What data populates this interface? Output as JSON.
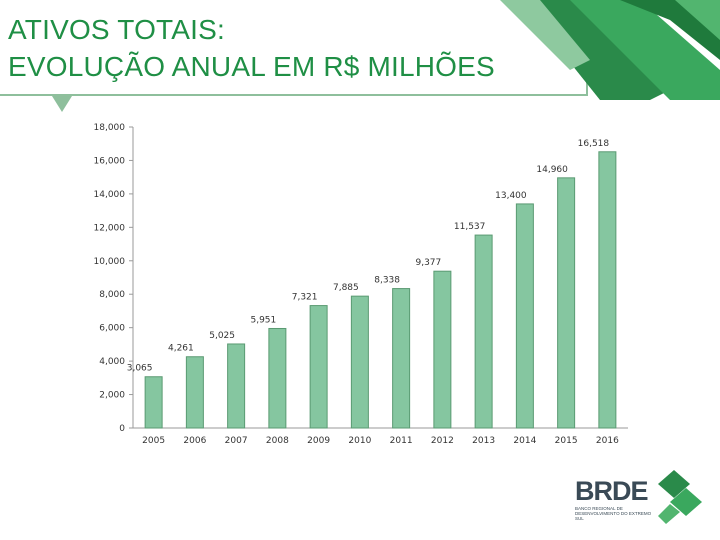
{
  "title": {
    "line1": "ATIVOS TOTAIS:",
    "line2": "EVOLUÇÃO ANUAL EM R$ MILHÕES"
  },
  "colors": {
    "bar_fill": "#85c6a0",
    "bar_stroke": "#5a9a72",
    "title_text": "#1f8f45",
    "accent_green": "#3aa85e",
    "dark_green": "#2a8a4a"
  },
  "logo": {
    "name": "BRDE",
    "subtitle": "BANCO REGIONAL DE DESENVOLVIMENTO DO EXTREMO SUL"
  },
  "chart_data": {
    "type": "bar",
    "title": "ATIVOS TOTAIS: EVOLUÇÃO ANUAL EM R$ MILHÕES",
    "categories": [
      "2005",
      "2006",
      "2007",
      "2008",
      "2009",
      "2010",
      "2011",
      "2012",
      "2013",
      "2014",
      "2015",
      "2016"
    ],
    "values": [
      3065,
      4261,
      5025,
      5951,
      7321,
      7885,
      8338,
      9377,
      11537,
      13400,
      14960,
      16518
    ],
    "value_labels": [
      "3,065",
      "4,261",
      "5,025",
      "5,951",
      "7,321",
      "7,885",
      "8,338",
      "9,377",
      "11,537",
      "13,400",
      "14,960",
      "16,518"
    ],
    "yticks": [
      0,
      2000,
      4000,
      6000,
      8000,
      10000,
      12000,
      14000,
      16000,
      18000
    ],
    "ytick_labels": [
      "0",
      "2,000",
      "4,000",
      "6,000",
      "8,000",
      "10,000",
      "12,000",
      "14,000",
      "16,000",
      "18,000"
    ],
    "ylim": [
      0,
      18000
    ],
    "xlabel": "",
    "ylabel": "",
    "grid": false,
    "legend": "none"
  }
}
